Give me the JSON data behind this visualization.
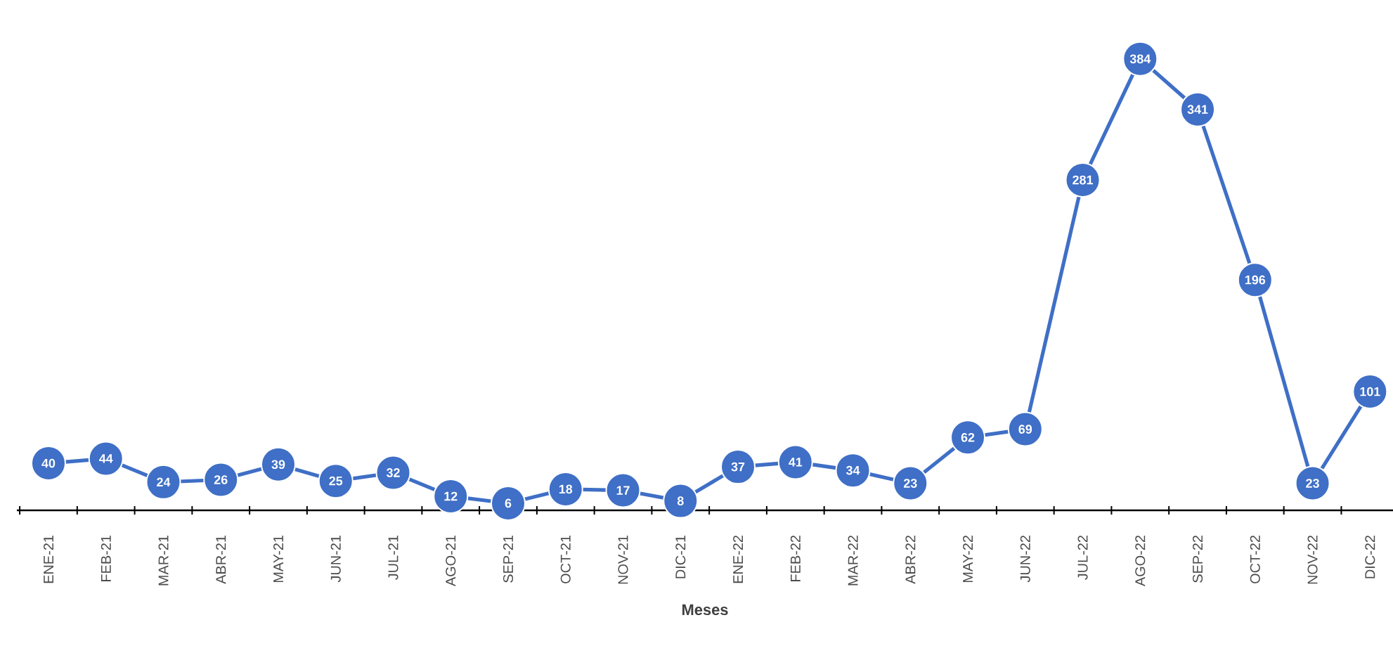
{
  "chart_data": {
    "type": "line",
    "xlabel": "Meses",
    "categories": [
      "ENE-21",
      "FEB-21",
      "MAR-21",
      "ABR-21",
      "MAY-21",
      "JUN-21",
      "JUL-21",
      "AGO-21",
      "SEP-21",
      "OCT-21",
      "NOV-21",
      "DIC-21",
      "ENE-22",
      "FEB-22",
      "MAR-22",
      "ABR-22",
      "MAY-22",
      "JUN-22",
      "JUL-22",
      "AGO-22",
      "SEP-22",
      "OCT-22",
      "NOV-22",
      "DIC-22"
    ],
    "values": [
      40,
      44,
      24,
      26,
      39,
      25,
      32,
      12,
      6,
      18,
      17,
      8,
      37,
      41,
      34,
      23,
      62,
      69,
      281,
      384,
      341,
      196,
      23,
      101
    ],
    "color": "#3f6fc6",
    "marker": "circle",
    "line_style": "solid",
    "data_labels": true
  }
}
